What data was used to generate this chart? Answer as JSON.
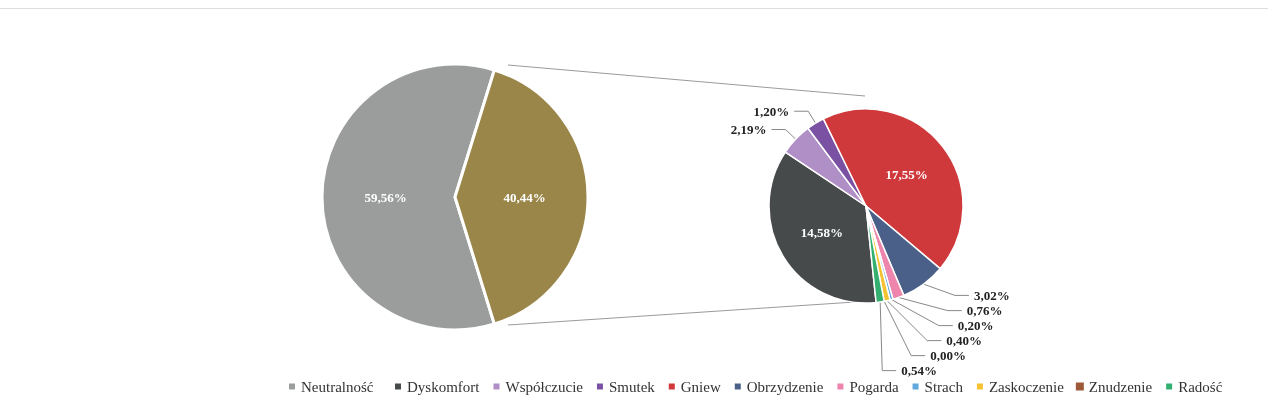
{
  "chart_data": [
    {
      "type": "pie",
      "categories": [
        "Neutralność",
        null
      ],
      "values": [
        59.56,
        40.44
      ],
      "colors": [
        "#9b9d9d",
        "#9a8649"
      ],
      "value_labels": [
        "59,56%",
        "40,44%"
      ],
      "legend": "bottom"
    },
    {
      "type": "pie",
      "categories": [
        "Dyskomfort",
        "Współczucie",
        "Smutek",
        "Gniew",
        "Obrzydzenie",
        "Pogarda",
        "Strach",
        "Zaskoczenie",
        "Znudzenie",
        "Radość"
      ],
      "values": [
        14.58,
        2.19,
        1.2,
        17.55,
        3.02,
        0.76,
        0.2,
        0.4,
        0.0,
        0.54
      ],
      "colors": [
        "#474a4b",
        "#b08fc6",
        "#7b52a3",
        "#d0393b",
        "#4a6088",
        "#ee85ad",
        "#62a8dc",
        "#f5c232",
        "#9e5a38",
        "#33b070"
      ],
      "value_labels": [
        "14,58%",
        "2,19%",
        "1,20%",
        "17,55%",
        "3,02%",
        "0,76%",
        "0,20%",
        "0,40%",
        "0,00%",
        "0,54%"
      ],
      "legend": "bottom"
    }
  ]
}
